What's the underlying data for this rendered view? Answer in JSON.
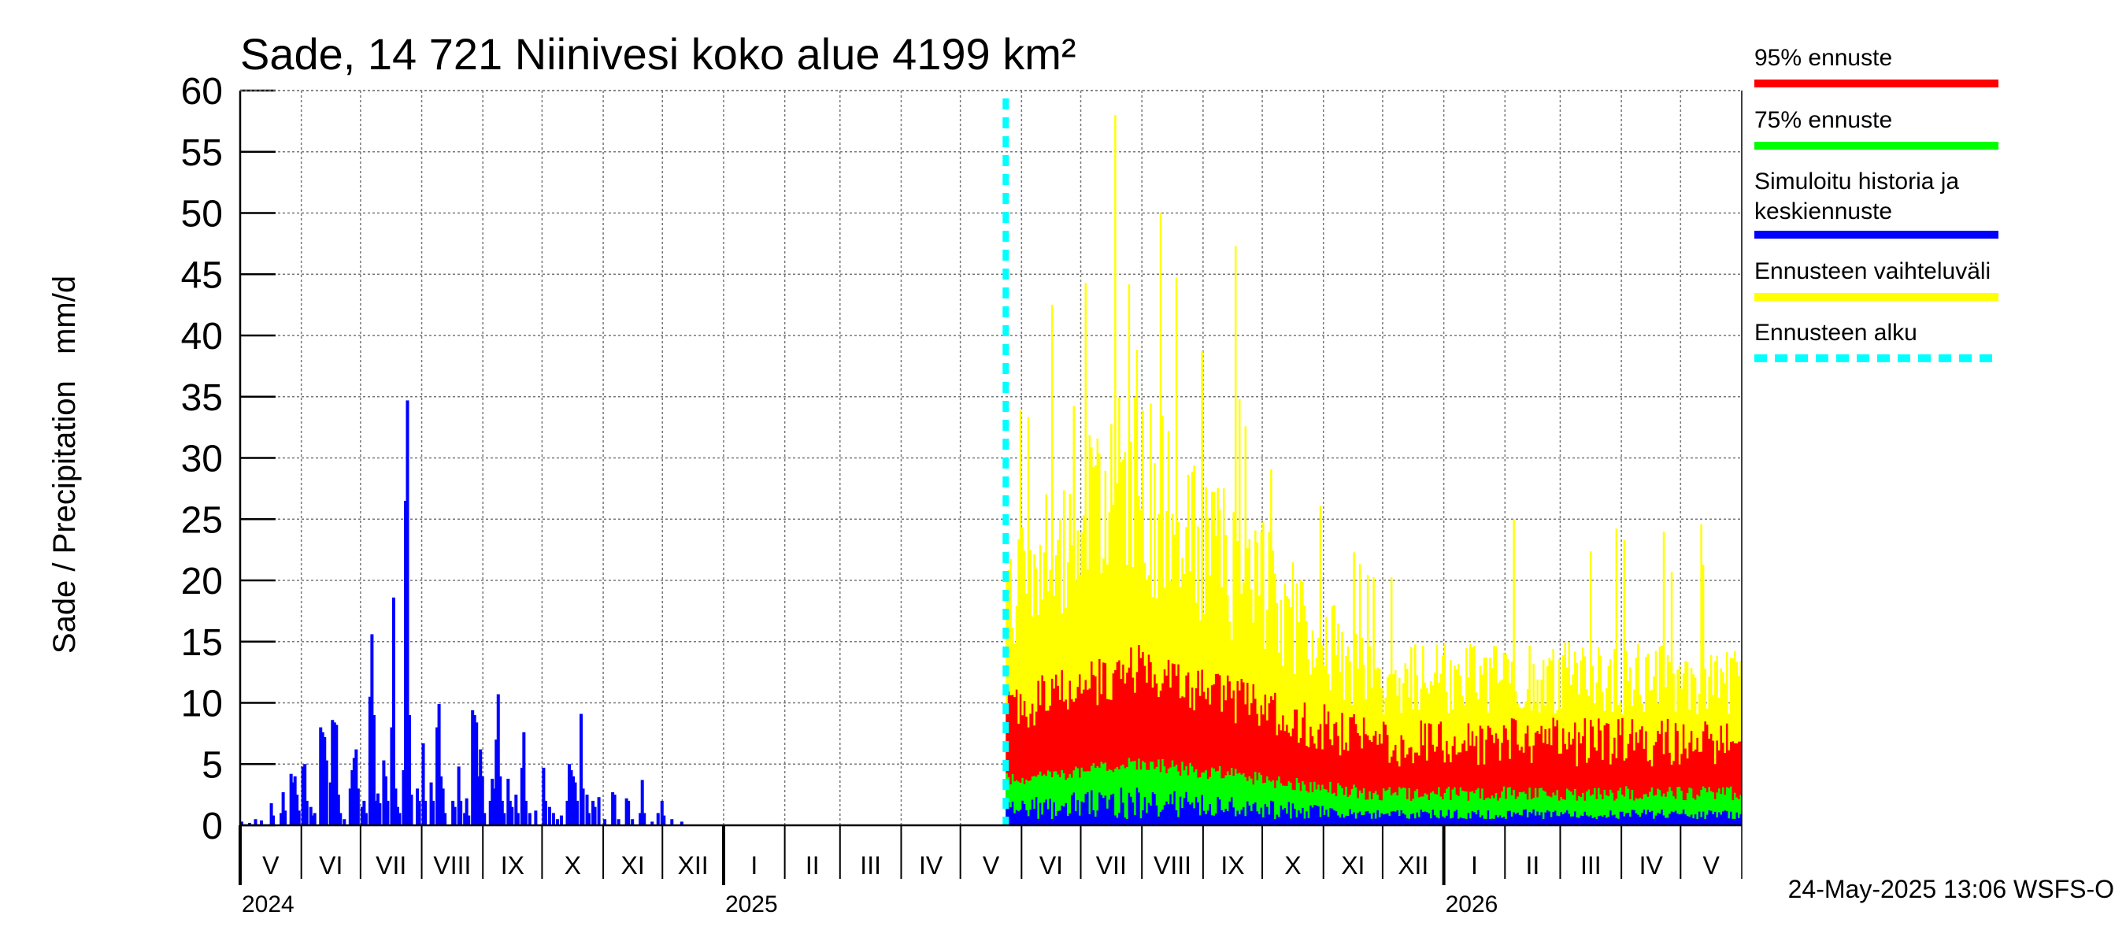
{
  "chart_data": {
    "type": "bar",
    "title": "Sade, 14 721 Niinivesi koko alue 4199 km²",
    "ylabel": "Sade / Precipitation   mm/d",
    "ylim": [
      0,
      60
    ],
    "yticks": [
      0,
      5,
      10,
      15,
      20,
      25,
      30,
      35,
      40,
      45,
      50,
      55,
      60
    ],
    "x_range": [
      "2024-05-01",
      "2026-05-31"
    ],
    "forecast_start": "2025-05-24",
    "grid": true,
    "legend_position": "right",
    "months": [
      {
        "label": "V",
        "start": "2024-05-01"
      },
      {
        "label": "VI",
        "start": "2024-06-01"
      },
      {
        "label": "VII",
        "start": "2024-07-01"
      },
      {
        "label": "VIII",
        "start": "2024-08-01"
      },
      {
        "label": "IX",
        "start": "2024-09-01"
      },
      {
        "label": "X",
        "start": "2024-10-01"
      },
      {
        "label": "XI",
        "start": "2024-11-01"
      },
      {
        "label": "XII",
        "start": "2024-12-01"
      },
      {
        "label": "I",
        "start": "2025-01-01"
      },
      {
        "label": "II",
        "start": "2025-02-01"
      },
      {
        "label": "III",
        "start": "2025-03-01"
      },
      {
        "label": "IV",
        "start": "2025-04-01"
      },
      {
        "label": "V",
        "start": "2025-05-01"
      },
      {
        "label": "VI",
        "start": "2025-06-01"
      },
      {
        "label": "VII",
        "start": "2025-07-01"
      },
      {
        "label": "VIII",
        "start": "2025-08-01"
      },
      {
        "label": "IX",
        "start": "2025-09-01"
      },
      {
        "label": "X",
        "start": "2025-10-01"
      },
      {
        "label": "XI",
        "start": "2025-11-01"
      },
      {
        "label": "XII",
        "start": "2025-12-01"
      },
      {
        "label": "I",
        "start": "2026-01-01"
      },
      {
        "label": "II",
        "start": "2026-02-01"
      },
      {
        "label": "III",
        "start": "2026-03-01"
      },
      {
        "label": "IV",
        "start": "2026-04-01"
      },
      {
        "label": "V",
        "start": "2026-05-01"
      }
    ],
    "years": [
      {
        "label": "2024",
        "start": "2024-05-01"
      },
      {
        "label": "2025",
        "start": "2025-01-01"
      },
      {
        "label": "2026",
        "start": "2026-01-01"
      }
    ],
    "series": [
      {
        "name": "Simuloitu historia ja keskiennuste",
        "color": "#0000ff",
        "points": [
          [
            "2024-05-01",
            0.3
          ],
          [
            "2024-05-05",
            0.2
          ],
          [
            "2024-05-08",
            0.5
          ],
          [
            "2024-05-11",
            0.4
          ],
          [
            "2024-05-16",
            1.8
          ],
          [
            "2024-05-17",
            0.8
          ],
          [
            "2024-05-21",
            1.0
          ],
          [
            "2024-05-22",
            2.7
          ],
          [
            "2024-05-23",
            1.2
          ],
          [
            "2024-05-26",
            4.2
          ],
          [
            "2024-05-27",
            3.5
          ],
          [
            "2024-05-28",
            4.0
          ],
          [
            "2024-05-29",
            2.5
          ],
          [
            "2024-05-30",
            1.2
          ],
          [
            "2024-06-01",
            4.8
          ],
          [
            "2024-06-02",
            5.0
          ],
          [
            "2024-06-03",
            2.0
          ],
          [
            "2024-06-05",
            1.5
          ],
          [
            "2024-06-06",
            0.8
          ],
          [
            "2024-06-07",
            1.0
          ],
          [
            "2024-06-10",
            8.0
          ],
          [
            "2024-06-11",
            7.6
          ],
          [
            "2024-06-12",
            7.2
          ],
          [
            "2024-06-13",
            5.3
          ],
          [
            "2024-06-15",
            3.5
          ],
          [
            "2024-06-16",
            8.6
          ],
          [
            "2024-06-17",
            8.4
          ],
          [
            "2024-06-18",
            8.2
          ],
          [
            "2024-06-19",
            2.5
          ],
          [
            "2024-06-20",
            1.0
          ],
          [
            "2024-06-22",
            0.5
          ],
          [
            "2024-06-25",
            3.0
          ],
          [
            "2024-06-26",
            4.5
          ],
          [
            "2024-06-27",
            5.5
          ],
          [
            "2024-06-28",
            6.2
          ],
          [
            "2024-06-29",
            3.0
          ],
          [
            "2024-07-01",
            1.5
          ],
          [
            "2024-07-02",
            2.0
          ],
          [
            "2024-07-03",
            1.0
          ],
          [
            "2024-07-05",
            10.5
          ],
          [
            "2024-07-06",
            15.6
          ],
          [
            "2024-07-07",
            9.0
          ],
          [
            "2024-07-08",
            2.0
          ],
          [
            "2024-07-09",
            2.6
          ],
          [
            "2024-07-10",
            1.8
          ],
          [
            "2024-07-12",
            5.3
          ],
          [
            "2024-07-13",
            4.0
          ],
          [
            "2024-07-14",
            2.0
          ],
          [
            "2024-07-16",
            8.0
          ],
          [
            "2024-07-17",
            18.6
          ],
          [
            "2024-07-18",
            3.0
          ],
          [
            "2024-07-19",
            1.5
          ],
          [
            "2024-07-20",
            1.0
          ],
          [
            "2024-07-22",
            4.5
          ],
          [
            "2024-07-23",
            26.5
          ],
          [
            "2024-07-24",
            34.7
          ],
          [
            "2024-07-25",
            9.0
          ],
          [
            "2024-07-26",
            2.5
          ],
          [
            "2024-07-29",
            3.0
          ],
          [
            "2024-07-30",
            2.0
          ],
          [
            "2024-08-01",
            6.7
          ],
          [
            "2024-08-02",
            2.0
          ],
          [
            "2024-08-05",
            3.5
          ],
          [
            "2024-08-06",
            2.0
          ],
          [
            "2024-08-08",
            8.0
          ],
          [
            "2024-08-09",
            9.9
          ],
          [
            "2024-08-10",
            4.0
          ],
          [
            "2024-08-11",
            3.0
          ],
          [
            "2024-08-12",
            1.0
          ],
          [
            "2024-08-16",
            2.0
          ],
          [
            "2024-08-17",
            1.5
          ],
          [
            "2024-08-19",
            4.8
          ],
          [
            "2024-08-20",
            2.0
          ],
          [
            "2024-08-22",
            1.0
          ],
          [
            "2024-08-23",
            2.2
          ],
          [
            "2024-08-24",
            0.8
          ],
          [
            "2024-08-26",
            9.4
          ],
          [
            "2024-08-27",
            9.0
          ],
          [
            "2024-08-28",
            8.4
          ],
          [
            "2024-08-29",
            4.0
          ],
          [
            "2024-08-30",
            6.2
          ],
          [
            "2024-08-31",
            4.0
          ],
          [
            "2024-09-01",
            1.0
          ],
          [
            "2024-09-04",
            2.0
          ],
          [
            "2024-09-05",
            3.8
          ],
          [
            "2024-09-06",
            3.0
          ],
          [
            "2024-09-07",
            7.0
          ],
          [
            "2024-09-08",
            10.7
          ],
          [
            "2024-09-09",
            4.0
          ],
          [
            "2024-09-10",
            2.0
          ],
          [
            "2024-09-11",
            1.0
          ],
          [
            "2024-09-13",
            3.8
          ],
          [
            "2024-09-14",
            2.0
          ],
          [
            "2024-09-15",
            1.5
          ],
          [
            "2024-09-17",
            2.5
          ],
          [
            "2024-09-18",
            1.0
          ],
          [
            "2024-09-20",
            4.7
          ],
          [
            "2024-09-21",
            7.6
          ],
          [
            "2024-09-22",
            2.0
          ],
          [
            "2024-09-24",
            1.0
          ],
          [
            "2024-09-27",
            1.2
          ],
          [
            "2024-10-01",
            4.7
          ],
          [
            "2024-10-02",
            2.0
          ],
          [
            "2024-10-04",
            1.5
          ],
          [
            "2024-10-06",
            1.0
          ],
          [
            "2024-10-08",
            0.5
          ],
          [
            "2024-10-10",
            0.8
          ],
          [
            "2024-10-13",
            2.0
          ],
          [
            "2024-10-14",
            5.0
          ],
          [
            "2024-10-15",
            4.5
          ],
          [
            "2024-10-16",
            4.0
          ],
          [
            "2024-10-17",
            3.5
          ],
          [
            "2024-10-18",
            2.0
          ],
          [
            "2024-10-20",
            9.1
          ],
          [
            "2024-10-21",
            3.0
          ],
          [
            "2024-10-23",
            2.5
          ],
          [
            "2024-10-24",
            1.0
          ],
          [
            "2024-10-26",
            2.0
          ],
          [
            "2024-10-27",
            1.5
          ],
          [
            "2024-10-29",
            2.3
          ],
          [
            "2024-11-01",
            0.5
          ],
          [
            "2024-11-05",
            2.7
          ],
          [
            "2024-11-06",
            2.5
          ],
          [
            "2024-11-08",
            0.5
          ],
          [
            "2024-11-12",
            2.2
          ],
          [
            "2024-11-13",
            2.0
          ],
          [
            "2024-11-15",
            0.5
          ],
          [
            "2024-11-19",
            1.0
          ],
          [
            "2024-11-20",
            3.7
          ],
          [
            "2024-11-21",
            1.0
          ],
          [
            "2024-11-25",
            0.3
          ],
          [
            "2024-11-28",
            1.0
          ],
          [
            "2024-11-30",
            2.0
          ],
          [
            "2024-12-01",
            0.8
          ],
          [
            "2024-12-05",
            0.5
          ],
          [
            "2024-12-10",
            0.3
          ]
        ],
        "forecast_mean_range": [
          0.5,
          2.5
        ]
      },
      {
        "name": "Ennusteen vaihteluväli",
        "color": "#ffff00",
        "forecast_range": [
          0,
          58
        ],
        "peak": 58
      },
      {
        "name": "95% ennuste",
        "color": "#ff0000",
        "forecast_range": [
          2.8,
          15.5
        ]
      },
      {
        "name": "75% ennuste",
        "color": "#00ff00",
        "forecast_range": [
          1.0,
          5.5
        ]
      },
      {
        "name": "Ennusteen alku",
        "color": "#00ffff"
      }
    ]
  },
  "legend": [
    {
      "label": "95% ennuste",
      "color": "#ff0000",
      "style": "solid"
    },
    {
      "label": "75% ennuste",
      "color": "#00ff00",
      "style": "solid"
    },
    {
      "label": "Simuloitu historia ja\nkeskiennuste",
      "color": "#0000ff",
      "style": "solid"
    },
    {
      "label": "Ennusteen vaihteluväli",
      "color": "#ffff00",
      "style": "solid"
    },
    {
      "label": "Ennusteen alku",
      "color": "#00ffff",
      "style": "dashed"
    }
  ],
  "footer": "24-May-2025 13:06 WSFS-O"
}
